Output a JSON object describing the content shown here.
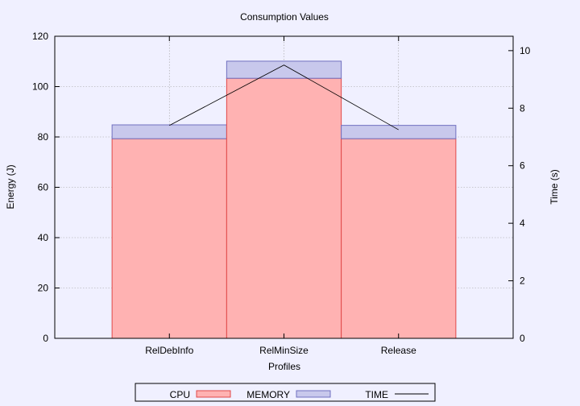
{
  "chart_data": {
    "type": "bar",
    "title": "Consumption Values",
    "xlabel": "Profiles",
    "ylabel": "Energy (J)",
    "y2label": "Time (s)",
    "categories": [
      "RelDebInfo",
      "RelMinSize",
      "Release"
    ],
    "stacked": true,
    "ylim": [
      0,
      120
    ],
    "y2lim": [
      0,
      10.5
    ],
    "yticks": [
      0,
      20,
      40,
      60,
      80,
      100,
      120
    ],
    "y2ticks": [
      0,
      2,
      4,
      6,
      8,
      10
    ],
    "series": [
      {
        "name": "CPU",
        "axis": "y",
        "kind": "bar",
        "color": "#ffb2b2",
        "edge": "#e04848",
        "values": [
          79.3,
          103.3,
          79.3
        ]
      },
      {
        "name": "MEMORY",
        "axis": "y",
        "kind": "bar",
        "color": "#c8c8ec",
        "edge": "#7070c0",
        "values": [
          5.5,
          6.8,
          5.3
        ]
      },
      {
        "name": "TIME",
        "axis": "y2",
        "kind": "line",
        "color": "#000000",
        "values": [
          7.4,
          9.5,
          7.25
        ]
      }
    ],
    "grid": true,
    "legend": "bottom"
  }
}
